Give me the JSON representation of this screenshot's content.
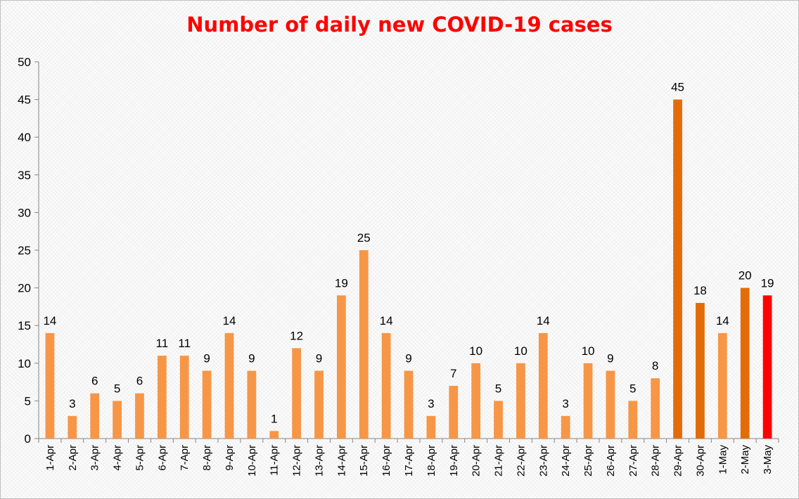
{
  "chart_data": {
    "type": "bar",
    "title": "Number of daily new COVID-19 cases",
    "xlabel": "",
    "ylabel": "",
    "ylim": [
      0,
      50
    ],
    "yticks": [
      0,
      5,
      10,
      15,
      20,
      25,
      30,
      35,
      40,
      45,
      50
    ],
    "grid": false,
    "legend": "none",
    "data_labels": true,
    "categories": [
      "1-Apr",
      "2-Apr",
      "3-Apr",
      "4-Apr",
      "5-Apr",
      "6-Apr",
      "7-Apr",
      "8-Apr",
      "9-Apr",
      "10-Apr",
      "11-Apr",
      "12-Apr",
      "13-Apr",
      "14-Apr",
      "15-Apr",
      "16-Apr",
      "17-Apr",
      "18-Apr",
      "19-Apr",
      "20-Apr",
      "21-Apr",
      "22-Apr",
      "23-Apr",
      "24-Apr",
      "25-Apr",
      "26-Apr",
      "27-Apr",
      "28-Apr",
      "29-Apr",
      "30-Apr",
      "1-May",
      "2-May",
      "3-May"
    ],
    "values": [
      14,
      3,
      6,
      5,
      6,
      11,
      11,
      9,
      14,
      9,
      1,
      12,
      9,
      19,
      25,
      14,
      9,
      3,
      7,
      10,
      5,
      10,
      14,
      3,
      10,
      9,
      5,
      8,
      45,
      18,
      14,
      20,
      19
    ],
    "bar_colors": [
      "#f79646",
      "#f79646",
      "#f79646",
      "#f79646",
      "#f79646",
      "#f79646",
      "#f79646",
      "#f79646",
      "#f79646",
      "#f79646",
      "#f79646",
      "#f79646",
      "#f79646",
      "#f79646",
      "#f79646",
      "#f79646",
      "#f79646",
      "#f79646",
      "#f79646",
      "#f79646",
      "#f79646",
      "#f79646",
      "#f79646",
      "#f79646",
      "#f79646",
      "#f79646",
      "#f79646",
      "#f79646",
      "#e36c09",
      "#e36c09",
      "#f79646",
      "#e36c09",
      "#ff0000"
    ]
  },
  "colors": {
    "title": "#ff0000",
    "axis": "#868686"
  }
}
